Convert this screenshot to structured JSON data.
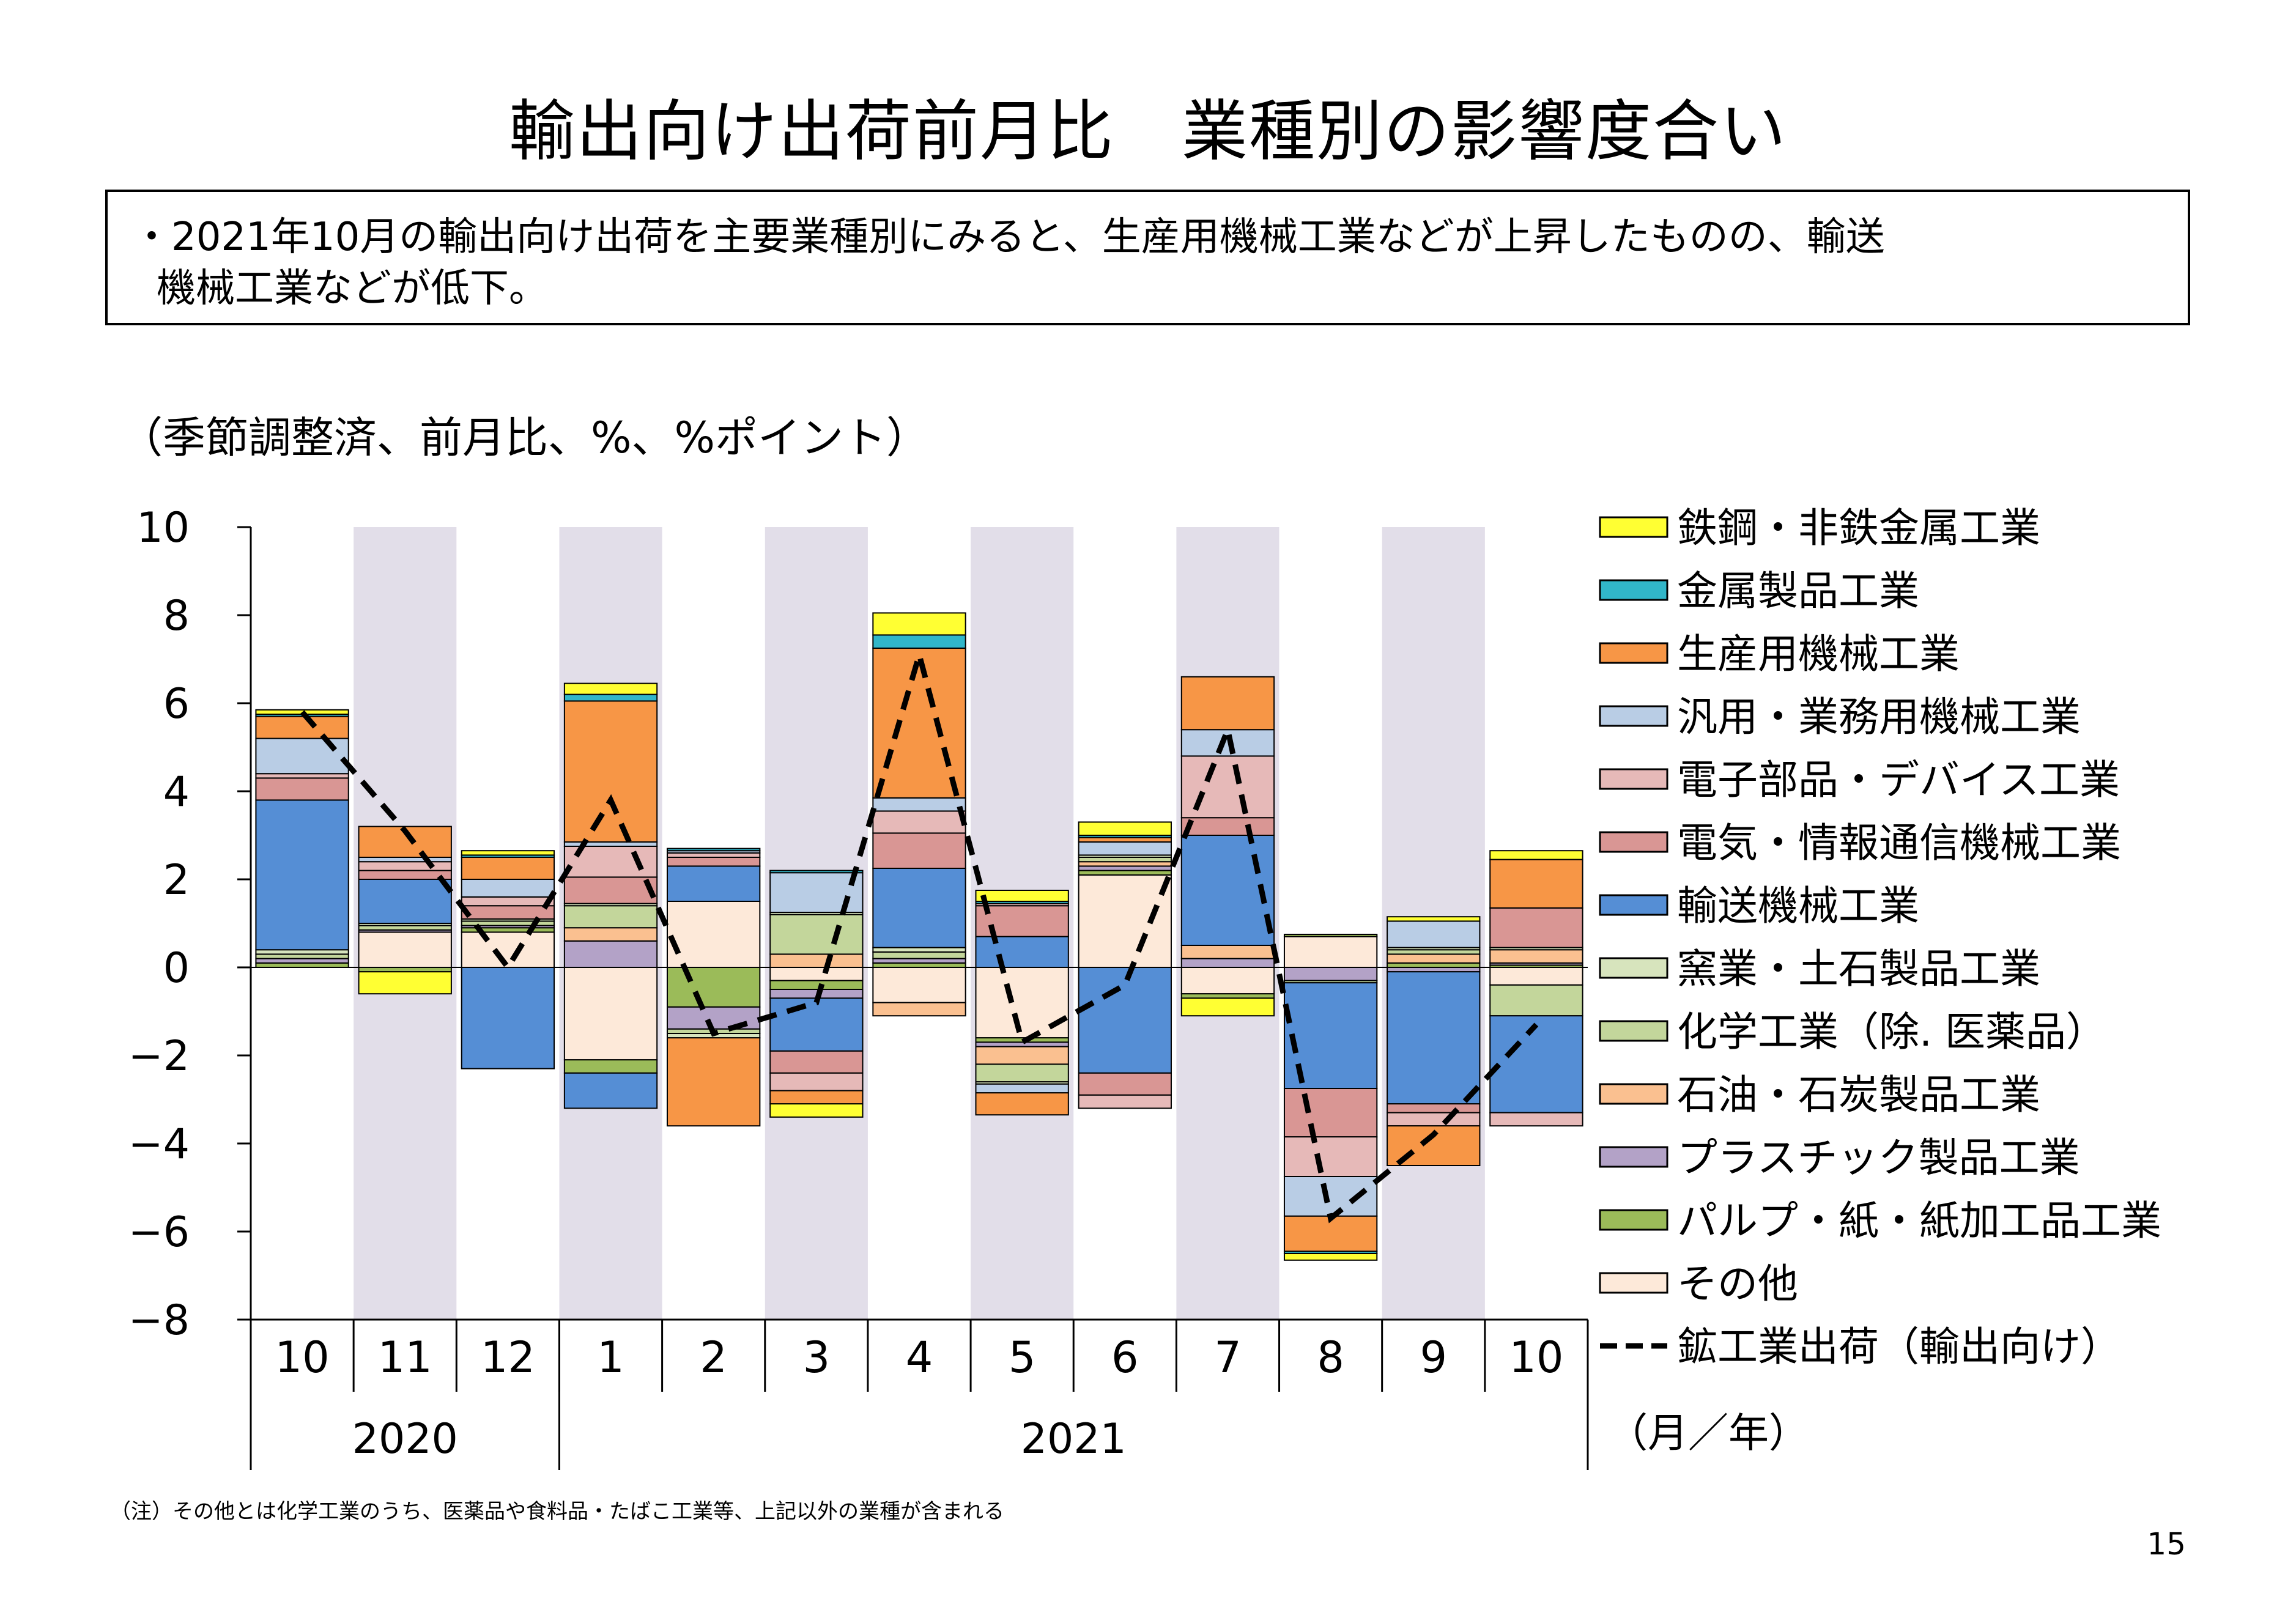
{
  "title": "輸出向け出荷前月比　業種別の影響度合い",
  "summary": {
    "line1": "・2021年10月の輸出向け出荷を主要業種別にみると、生産用機械工業などが上昇したものの、輸送",
    "line2": "機械工業などが低下。"
  },
  "unit_label": "（季節調整済、前月比、%、%ポイント）",
  "note": "（注）その他とは化学工業のうち、医薬品や食料品・たばこ工業等、上記以外の業種が含まれる",
  "page_number": "15",
  "axis_unit_label": "（月／年）",
  "chart_data": {
    "type": "bar",
    "stacked": true,
    "title": "輸出向け出荷前月比　業種別の影響度合い",
    "ylim": [
      -8,
      10
    ],
    "yticks": [
      "10",
      "8",
      "6",
      "4",
      "2",
      "0",
      "−2",
      "−4",
      "−6",
      "−8"
    ],
    "ytick_values": [
      10,
      8,
      6,
      4,
      2,
      0,
      -2,
      -4,
      -6,
      -8
    ],
    "categories": [
      "10",
      "11",
      "12",
      "1",
      "2",
      "3",
      "4",
      "5",
      "6",
      "7",
      "8",
      "9",
      "10"
    ],
    "years": [
      {
        "label": "2020",
        "start": 0,
        "end": 2
      },
      {
        "label": "2021",
        "start": 3,
        "end": 12
      }
    ],
    "shaded_columns": [
      1,
      3,
      5,
      7,
      9,
      11
    ],
    "shade_color": "#e2dee9",
    "series": [
      {
        "name": "その他",
        "color": "#fde9d9",
        "values": [
          0.0,
          0.8,
          0.8,
          -2.1,
          1.5,
          -0.3,
          -0.8,
          -1.6,
          2.1,
          -0.6,
          0.7,
          0.0,
          -0.4
        ]
      },
      {
        "name": "パルプ・紙・紙加工品工業",
        "color": "#9bbb59",
        "values": [
          0.1,
          -0.1,
          0.1,
          -0.3,
          -0.9,
          -0.2,
          0.1,
          -0.1,
          0.1,
          -0.1,
          0.05,
          0.1,
          0.05
        ]
      },
      {
        "name": "プラスチック製品工業",
        "color": "#b3a2c7",
        "values": [
          0.1,
          0.05,
          0.05,
          0.6,
          -0.5,
          -0.2,
          0.1,
          -0.1,
          0.1,
          0.2,
          -0.3,
          -0.1,
          0.05
        ]
      },
      {
        "name": "石油・石炭製品工業",
        "color": "#fac090",
        "values": [
          0.0,
          0.0,
          0.0,
          0.3,
          0.0,
          0.3,
          -0.3,
          -0.4,
          0.1,
          0.3,
          0.0,
          0.2,
          0.3
        ]
      },
      {
        "name": "化学工業（除. 医薬品）",
        "color": "#c3d69b",
        "values": [
          0.1,
          0.1,
          0.1,
          0.5,
          -0.1,
          0.9,
          0.15,
          -0.4,
          0.1,
          0.0,
          -0.05,
          0.1,
          -0.7
        ]
      },
      {
        "name": "窯業・土石製品工業",
        "color": "#d7e4bd",
        "values": [
          0.1,
          0.05,
          0.05,
          0.05,
          -0.1,
          0.05,
          0.1,
          -0.05,
          0.05,
          0.0,
          0.0,
          0.05,
          0.05
        ]
      },
      {
        "name": "輸送機械工業",
        "color": "#558ed5",
        "values": [
          3.4,
          1.0,
          -2.3,
          -0.8,
          0.8,
          -1.2,
          1.8,
          0.7,
          -2.4,
          2.5,
          -2.4,
          -3.0,
          -2.2
        ]
      },
      {
        "name": "電気・情報通信機械工業",
        "color": "#d99694",
        "values": [
          0.5,
          0.2,
          0.3,
          0.6,
          0.2,
          -0.5,
          0.8,
          0.7,
          -0.5,
          0.4,
          -1.1,
          -0.2,
          0.9
        ]
      },
      {
        "name": "電子部品・デバイス工業",
        "color": "#e6b9b8",
        "values": [
          0.1,
          0.2,
          0.2,
          0.7,
          0.1,
          -0.4,
          0.5,
          0.05,
          -0.3,
          1.4,
          -0.9,
          -0.3,
          -0.3
        ]
      },
      {
        "name": "汎用・業務用機械工業",
        "color": "#b9cde5",
        "values": [
          0.8,
          0.1,
          0.4,
          0.1,
          0.05,
          0.9,
          0.3,
          -0.2,
          0.3,
          0.6,
          -0.9,
          0.6,
          0.0
        ]
      },
      {
        "name": "生産用機械工業",
        "color": "#f79646",
        "values": [
          0.5,
          0.7,
          0.5,
          3.2,
          -2.0,
          -0.3,
          3.4,
          -0.5,
          0.1,
          1.2,
          -0.8,
          -0.9,
          1.1
        ]
      },
      {
        "name": "金属製品工業",
        "color": "#31b6c9",
        "values": [
          0.05,
          0.0,
          0.05,
          0.15,
          0.05,
          0.05,
          0.3,
          0.05,
          0.05,
          0.0,
          -0.05,
          0.0,
          0.0
        ]
      },
      {
        "name": "鉄鋼・非鉄金属工業",
        "color": "#ffff33",
        "values": [
          0.1,
          -0.5,
          0.1,
          0.25,
          0.0,
          -0.3,
          0.5,
          0.25,
          0.3,
          -0.4,
          -0.15,
          0.1,
          0.2
        ]
      }
    ],
    "line_series": {
      "name": "鉱工業出荷（輸出向け）",
      "values": [
        5.8,
        3.1,
        0.0,
        3.8,
        -1.5,
        -0.8,
        7.1,
        -1.7,
        -0.4,
        5.4,
        -5.7,
        -3.8,
        -1.3
      ]
    },
    "legend_order": [
      "鉄鋼・非鉄金属工業",
      "金属製品工業",
      "生産用機械工業",
      "汎用・業務用機械工業",
      "電子部品・デバイス工業",
      "電気・情報通信機械工業",
      "輸送機械工業",
      "窯業・土石製品工業",
      "化学工業（除. 医薬品）",
      "石油・石炭製品工業",
      "プラスチック製品工業",
      "パルプ・紙・紙加工品工業",
      "その他",
      "鉱工業出荷（輸出向け）"
    ]
  }
}
